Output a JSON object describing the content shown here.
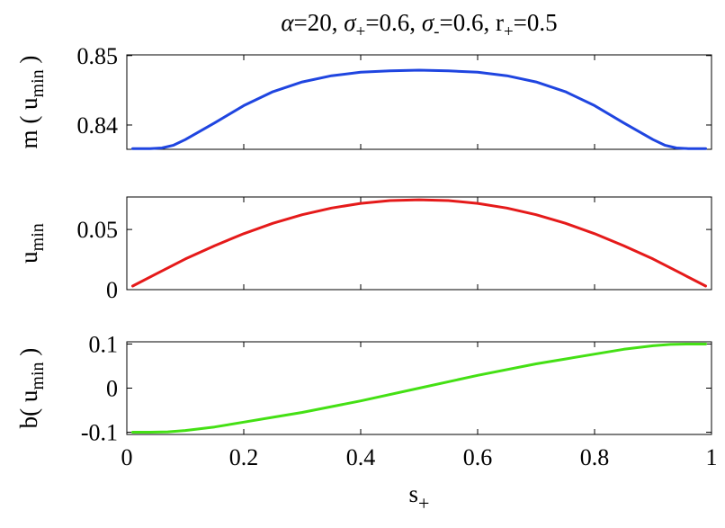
{
  "chart_data": [
    {
      "type": "line",
      "title_parts": [
        "α",
        "=20, ",
        "σ",
        "+",
        "=0.6, ",
        "σ",
        "-",
        "=0.6, r",
        "+",
        "=0.5"
      ],
      "ylabel_parts": [
        "m ( u",
        "min",
        " )"
      ],
      "xlabel_parts": [
        "s",
        "+"
      ],
      "xlim": [
        0,
        1
      ],
      "ylim": [
        0.8365,
        0.8501
      ],
      "yticks": [
        0.84,
        0.85
      ],
      "ytick_labels": [
        "0.84",
        "0.85"
      ],
      "xtick_labels": [],
      "grid": false,
      "series": [
        {
          "color": "#1f45e0",
          "x": [
            0.01,
            0.04,
            0.06,
            0.08,
            0.1,
            0.15,
            0.2,
            0.25,
            0.3,
            0.35,
            0.4,
            0.45,
            0.5,
            0.55,
            0.6,
            0.65,
            0.7,
            0.75,
            0.8,
            0.85,
            0.9,
            0.92,
            0.94,
            0.96,
            0.99
          ],
          "y": [
            0.8366,
            0.8366,
            0.8367,
            0.8371,
            0.8379,
            0.8403,
            0.8428,
            0.8448,
            0.8462,
            0.8471,
            0.8476,
            0.8478,
            0.8479,
            0.8478,
            0.8476,
            0.8471,
            0.8462,
            0.8448,
            0.8428,
            0.8403,
            0.8379,
            0.8371,
            0.8367,
            0.8366,
            0.8366
          ]
        }
      ]
    },
    {
      "type": "line",
      "ylabel_parts": [
        "u",
        "min",
        ""
      ],
      "xlim": [
        0,
        1
      ],
      "ylim": [
        0,
        0.077
      ],
      "yticks": [
        0,
        0.05
      ],
      "ytick_labels": [
        "0",
        "0.05"
      ],
      "xtick_labels": [],
      "grid": false,
      "series": [
        {
          "color": "#e51a1a",
          "x": [
            0.01,
            0.05,
            0.1,
            0.15,
            0.2,
            0.25,
            0.3,
            0.35,
            0.4,
            0.45,
            0.5,
            0.55,
            0.6,
            0.65,
            0.7,
            0.75,
            0.8,
            0.85,
            0.9,
            0.95,
            0.99
          ],
          "y": [
            0.003,
            0.013,
            0.0255,
            0.0365,
            0.0465,
            0.0552,
            0.0623,
            0.0678,
            0.0717,
            0.074,
            0.0747,
            0.074,
            0.0717,
            0.0678,
            0.0623,
            0.0552,
            0.0465,
            0.0365,
            0.0255,
            0.013,
            0.003
          ]
        }
      ]
    },
    {
      "type": "line",
      "ylabel_parts": [
        "b( u",
        "min",
        " )"
      ],
      "xlabel_parts": [
        "s",
        "+"
      ],
      "xlim": [
        0,
        1
      ],
      "ylim": [
        -0.105,
        0.105
      ],
      "yticks": [
        -0.1,
        0,
        0.1
      ],
      "ytick_labels": [
        "-0.1",
        "0",
        "0.1"
      ],
      "xticks": [
        0,
        0.2,
        0.4,
        0.6,
        0.8,
        1
      ],
      "xtick_labels": [
        "0",
        "0.2",
        "0.4",
        "0.6",
        "0.8",
        "1"
      ],
      "grid": false,
      "series": [
        {
          "color": "#44e014",
          "x": [
            0.01,
            0.04,
            0.07,
            0.1,
            0.15,
            0.2,
            0.25,
            0.3,
            0.4,
            0.5,
            0.6,
            0.7,
            0.75,
            0.8,
            0.85,
            0.9,
            0.93,
            0.96,
            0.99
          ],
          "y": [
            -0.1,
            -0.1,
            -0.099,
            -0.096,
            -0.088,
            -0.077,
            -0.066,
            -0.055,
            -0.029,
            0.0,
            0.029,
            0.055,
            0.066,
            0.077,
            0.088,
            0.096,
            0.099,
            0.1,
            0.1
          ]
        }
      ]
    }
  ]
}
